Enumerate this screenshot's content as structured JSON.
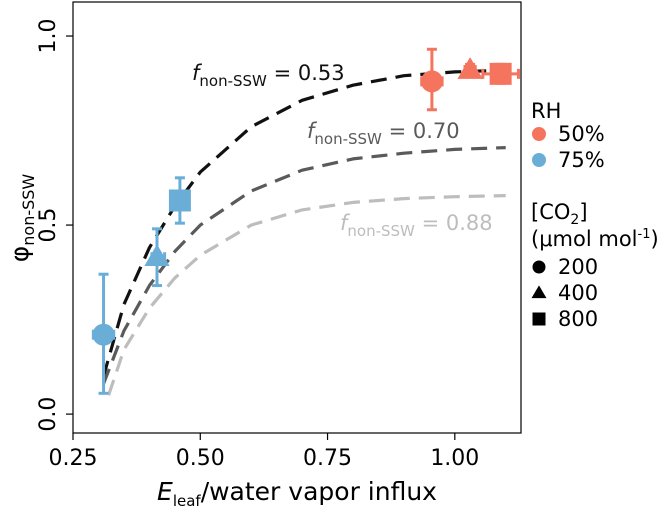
{
  "chart_data": {
    "type": "scatter",
    "xlabel": {
      "main": "E",
      "sub": "leaf",
      "rest": "/water vapor influx"
    },
    "ylabel": {
      "main": "φ",
      "sub": "non-SSW"
    },
    "xlim": [
      0.25,
      1.13
    ],
    "ylim": [
      -0.05,
      1.09
    ],
    "x_ticks": [
      0.25,
      0.5,
      0.75,
      1.0
    ],
    "x_tick_labels": [
      "0.25",
      "0.50",
      "0.75",
      "1.00"
    ],
    "y_ticks": [
      0.0,
      0.5,
      1.0
    ],
    "y_tick_labels": [
      "0.0",
      "0.5",
      "1.0"
    ],
    "grid": false,
    "legend_position": "right",
    "colors": {
      "rh50": "#f4745e",
      "rh75": "#6aaed8"
    },
    "points": [
      {
        "x": 0.31,
        "y": 0.21,
        "yerr": [
          0.055,
          0.37
        ],
        "xerr": [
          0.29,
          0.33
        ],
        "rh": "75%",
        "co2": "200"
      },
      {
        "x": 0.415,
        "y": 0.415,
        "yerr": [
          0.34,
          0.49
        ],
        "xerr": [
          0.405,
          0.43
        ],
        "rh": "75%",
        "co2": "400"
      },
      {
        "x": 0.46,
        "y": 0.565,
        "yerr": [
          0.505,
          0.625
        ],
        "xerr": [
          0.45,
          0.47
        ],
        "rh": "75%",
        "co2": "800"
      },
      {
        "x": 0.955,
        "y": 0.88,
        "yerr": [
          0.805,
          0.965
        ],
        "xerr": [
          0.935,
          0.975
        ],
        "rh": "50%",
        "co2": "200"
      },
      {
        "x": 1.03,
        "y": 0.91,
        "yerr": [
          0.9,
          0.925
        ],
        "xerr": [
          1.02,
          1.04
        ],
        "rh": "50%",
        "co2": "400"
      },
      {
        "x": 1.09,
        "y": 0.9,
        "yerr": [
          0.875,
          0.925
        ],
        "xerr": [
          1.055,
          1.125
        ],
        "rh": "50%",
        "co2": "800"
      }
    ],
    "fits": [
      {
        "label_prefix": "f",
        "label_sub": "non-SSW",
        "label_value": " = 0.53",
        "color": "#111111",
        "x": [
          0.31,
          0.35,
          0.4,
          0.45,
          0.5,
          0.6,
          0.7,
          0.8,
          0.9,
          1.0,
          1.1
        ],
        "y": [
          0.1,
          0.29,
          0.44,
          0.55,
          0.64,
          0.76,
          0.83,
          0.87,
          0.895,
          0.905,
          0.91
        ]
      },
      {
        "label_prefix": "f",
        "label_sub": "non-SSW",
        "label_value": " = 0.70",
        "color": "#5a5a5a",
        "x": [
          0.31,
          0.35,
          0.4,
          0.45,
          0.5,
          0.6,
          0.7,
          0.8,
          0.9,
          1.0,
          1.1
        ],
        "y": [
          0.08,
          0.22,
          0.34,
          0.43,
          0.5,
          0.59,
          0.645,
          0.675,
          0.69,
          0.7,
          0.705
        ]
      },
      {
        "label_prefix": "f",
        "label_sub": "non-SSW",
        "label_value": " = 0.88",
        "color": "#bdbdbd",
        "x": [
          0.32,
          0.35,
          0.4,
          0.45,
          0.5,
          0.6,
          0.7,
          0.8,
          0.9,
          1.0,
          1.1
        ],
        "y": [
          0.05,
          0.17,
          0.28,
          0.36,
          0.42,
          0.5,
          0.54,
          0.56,
          0.57,
          0.575,
          0.578
        ]
      }
    ],
    "legend": {
      "rh_title": "RH",
      "rh_items": [
        {
          "label": "50%",
          "color": "#f4745e"
        },
        {
          "label": "75%",
          "color": "#6aaed8"
        }
      ],
      "co2_title_main": "[CO",
      "co2_title_sub": "2",
      "co2_title_end": "]",
      "co2_unit_main": "(μmol mol",
      "co2_unit_sup": "-1",
      "co2_unit_end": ")",
      "co2_items": [
        {
          "label": "200",
          "shape": "circle"
        },
        {
          "label": "400",
          "shape": "triangle"
        },
        {
          "label": "800",
          "shape": "square"
        }
      ]
    }
  }
}
